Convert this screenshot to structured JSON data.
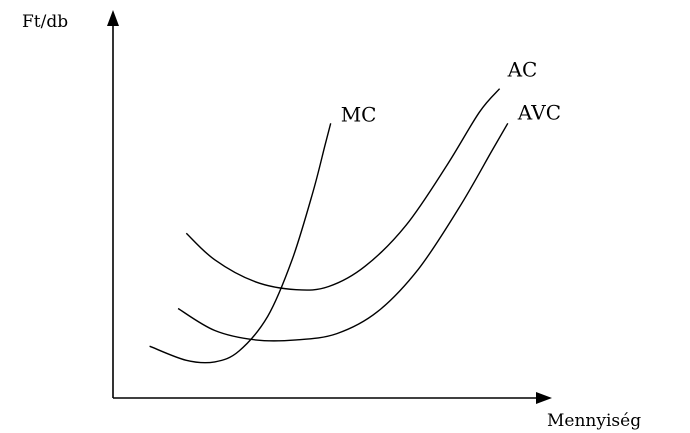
{
  "chart_data": {
    "type": "line",
    "title": "",
    "xlabel": "Mennyiség",
    "ylabel": "Ft/db",
    "xlim": [
      0,
      10
    ],
    "ylim": [
      0,
      10
    ],
    "grid": false,
    "legend": "none",
    "series": [
      {
        "name": "AC",
        "x": [
          1.8,
          2.5,
          3.5,
          4.5,
          5.3,
          6.2,
          7.2,
          8.2,
          9.0,
          9.5
        ],
        "y": [
          5.25,
          4.4,
          3.7,
          3.45,
          3.55,
          4.2,
          5.5,
          7.4,
          9.1,
          9.85
        ]
      },
      {
        "name": "AVC",
        "x": [
          1.6,
          2.5,
          3.5,
          4.5,
          5.5,
          6.5,
          7.5,
          8.5,
          9.3,
          9.7
        ],
        "y": [
          2.85,
          2.15,
          1.85,
          1.85,
          2.05,
          2.75,
          4.1,
          6.05,
          7.85,
          8.75
        ]
      },
      {
        "name": "MC",
        "x": [
          0.9,
          1.8,
          2.5,
          3.1,
          3.8,
          4.4,
          4.9,
          5.2,
          5.35
        ],
        "y": [
          1.65,
          1.2,
          1.15,
          1.5,
          2.6,
          4.4,
          6.5,
          8.0,
          8.75
        ]
      }
    ]
  }
}
